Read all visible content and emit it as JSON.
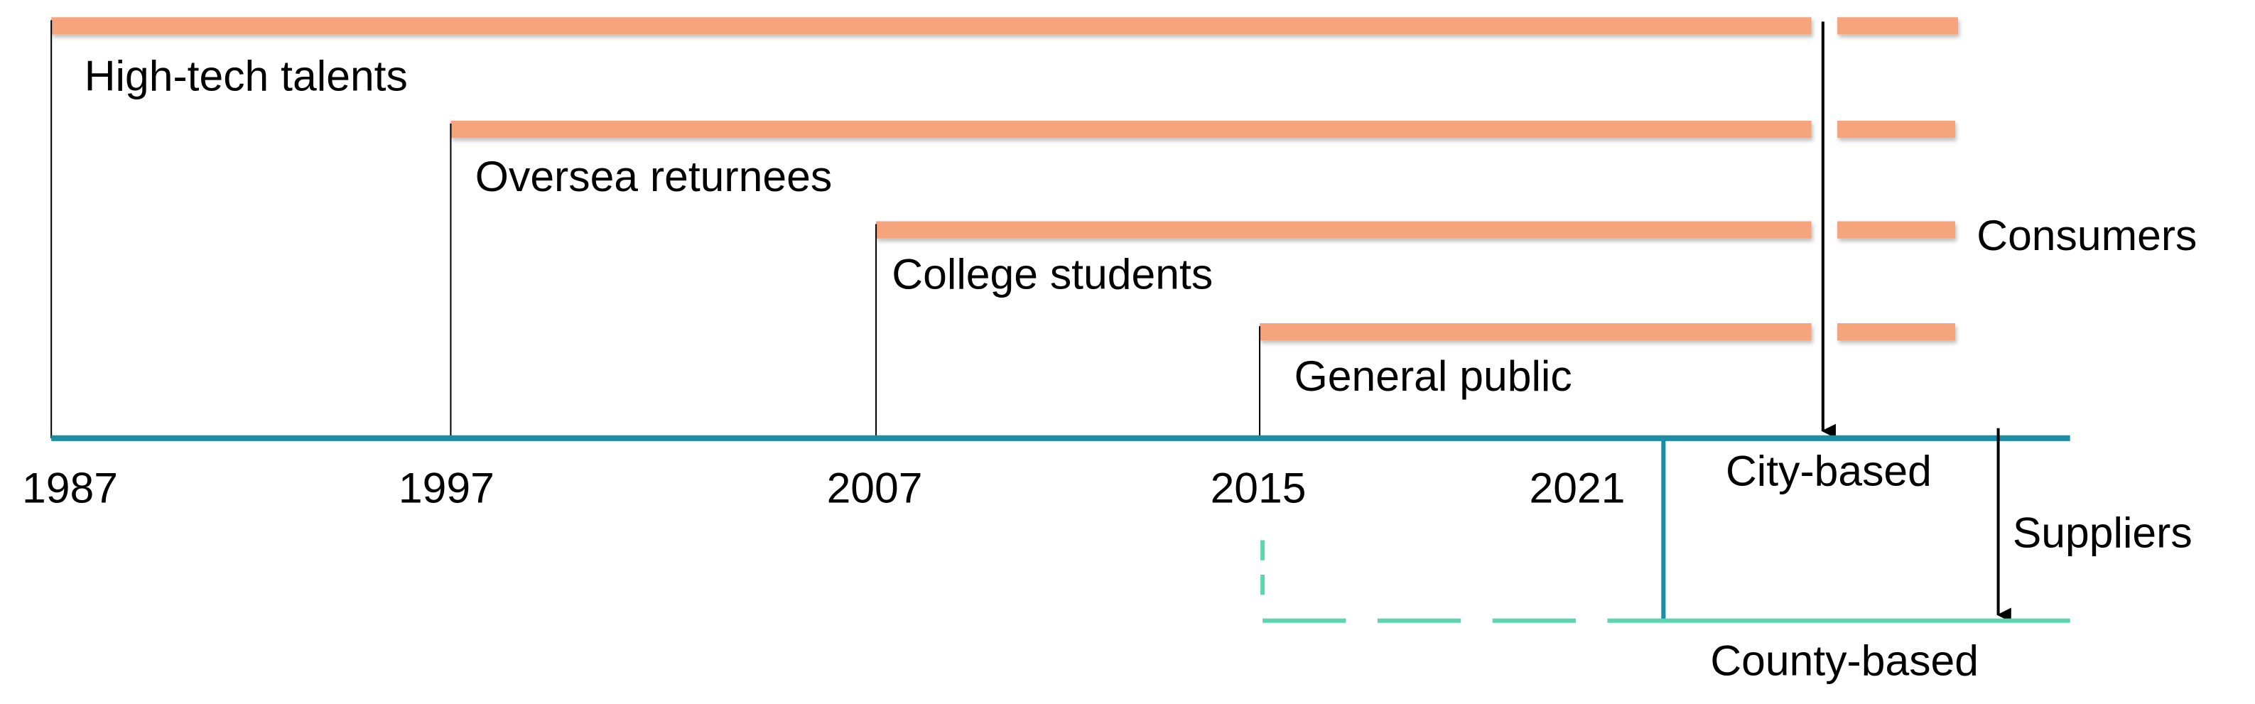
{
  "consumer_groups": [
    {
      "label": "High-tech talents"
    },
    {
      "label": "Oversea returnees"
    },
    {
      "label": "College students"
    },
    {
      "label": "General public"
    }
  ],
  "consumers_label": "Consumers",
  "timeline": {
    "years": [
      "1987",
      "1997",
      "2007",
      "2015",
      "2021"
    ]
  },
  "supplier_levels": {
    "city": "City-based",
    "county": "County-based"
  },
  "suppliers_label": "Suppliers"
}
